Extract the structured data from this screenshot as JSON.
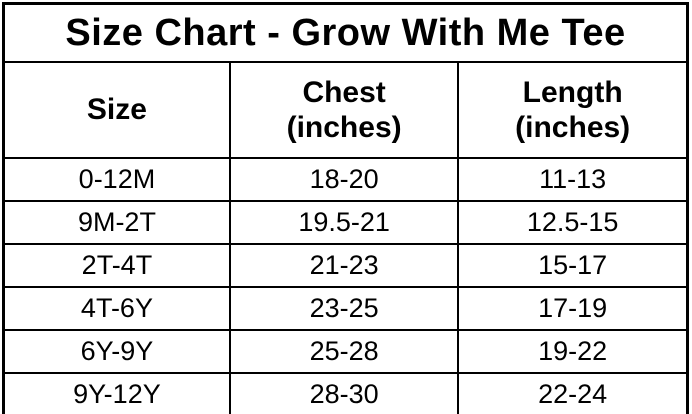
{
  "colors": {
    "border": "#000000",
    "text": "#000000",
    "background": "#ffffff"
  },
  "chart_data": {
    "type": "table",
    "title": "Size Chart - Grow With Me Tee",
    "columns": [
      {
        "label": "Size",
        "lines": [
          "Size"
        ]
      },
      {
        "label": "Chest (inches)",
        "lines": [
          "Chest",
          "(inches)"
        ]
      },
      {
        "label": "Length (inches)",
        "lines": [
          "Length",
          "(inches)"
        ]
      }
    ],
    "rows": [
      [
        "0-12M",
        "18-20",
        "11-13"
      ],
      [
        "9M-2T",
        "19.5-21",
        "12.5-15"
      ],
      [
        "2T-4T",
        "21-23",
        "15-17"
      ],
      [
        "4T-6Y",
        "23-25",
        "17-19"
      ],
      [
        "6Y-9Y",
        "25-28",
        "19-22"
      ],
      [
        "9Y-12Y",
        "28-30",
        "22-24"
      ]
    ]
  }
}
